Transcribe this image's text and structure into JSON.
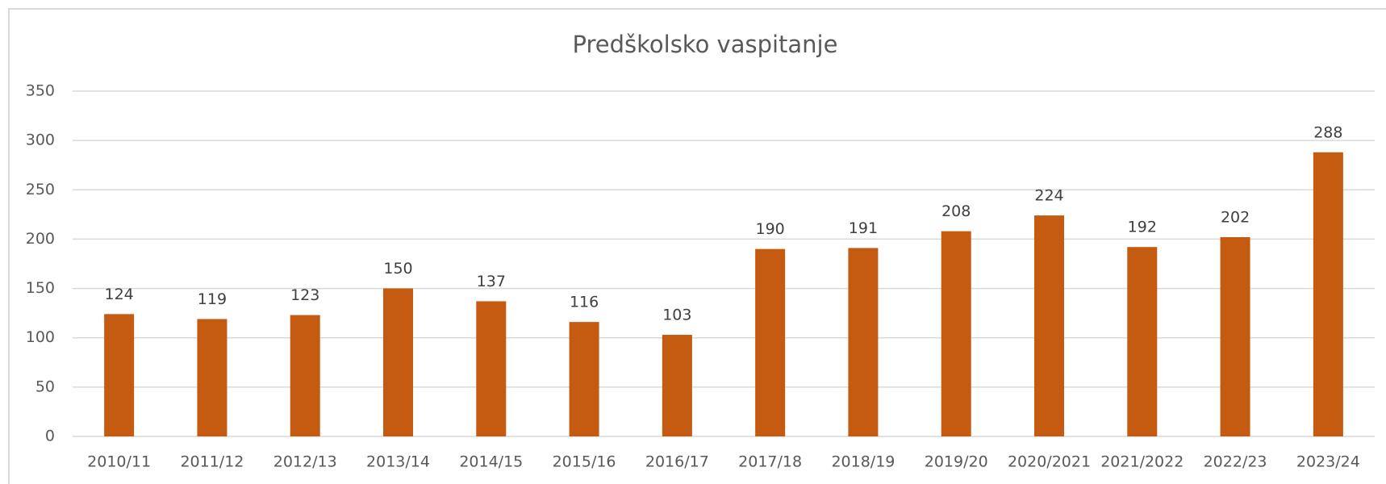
{
  "chart_data": {
    "type": "bar",
    "title": "Predškolsko vaspitanje",
    "categories": [
      "2010/11",
      "2011/12",
      "2012/13",
      "2013/14",
      "2014/15",
      "2015/16",
      "2016/17",
      "2017/18",
      "2018/19",
      "2019/20",
      "2020/2021",
      "2021/2022",
      "2022/23",
      "2023/24"
    ],
    "values": [
      124,
      119,
      123,
      150,
      137,
      116,
      103,
      190,
      191,
      208,
      224,
      192,
      202,
      288
    ],
    "color": "#c55a11",
    "ylim": [
      0,
      350
    ],
    "yticks": [
      0,
      50,
      100,
      150,
      200,
      250,
      300,
      350
    ],
    "grid": true
  }
}
